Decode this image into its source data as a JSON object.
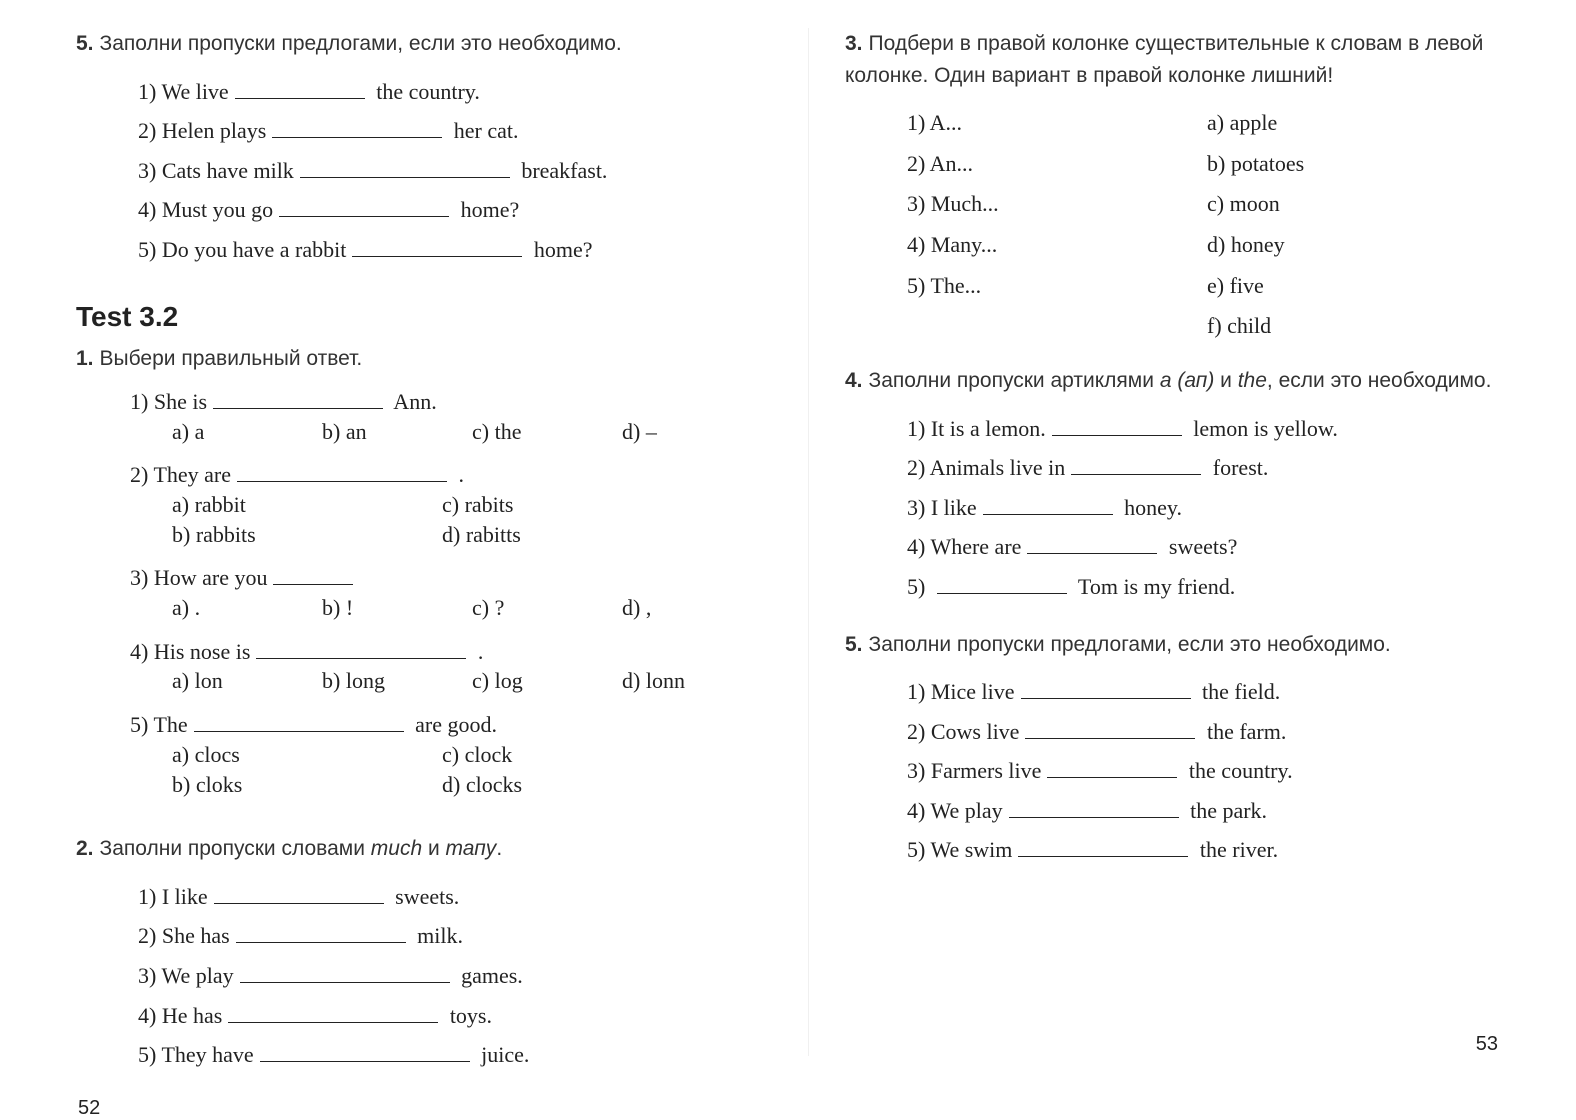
{
  "left": {
    "page_number": "52",
    "task5": {
      "num": "5.",
      "intro": "Заполни пропуски предлогами, если это необходимо.",
      "items": [
        {
          "n": "1)",
          "pre": "We live",
          "post": "the country.",
          "blank": "md"
        },
        {
          "n": "2)",
          "pre": "Helen plays",
          "post": "her cat.",
          "blank": "lg"
        },
        {
          "n": "3)",
          "pre": "Cats have milk",
          "post": "breakfast.",
          "blank": "xl"
        },
        {
          "n": "4)",
          "pre": "Must you go",
          "post": "home?",
          "blank": "lg"
        },
        {
          "n": "5)",
          "pre": "Do you have a rabbit",
          "post": "home?",
          "blank": "lg"
        }
      ]
    },
    "heading": "Test 3.2",
    "task1": {
      "num": "1.",
      "intro": "Выбери правильный ответ.",
      "items": [
        {
          "n": "1)",
          "stem_pre": "She is",
          "stem_post": "Ann.",
          "blank": "lg",
          "opts": [
            "a) a",
            "b) an",
            "c) the",
            "d) –"
          ],
          "layout": "col4"
        },
        {
          "n": "2)",
          "stem_pre": "They are",
          "stem_post": ".",
          "blank": "xl",
          "opts": [
            "a) rabbit",
            "c) rabits",
            "b) rabbits",
            "d) rabitts"
          ],
          "layout": "col2"
        },
        {
          "n": "3)",
          "stem_pre": "How are you",
          "stem_post": "",
          "blank": "sm",
          "opts": [
            "a) .",
            "b) !",
            "c) ?",
            "d) ,"
          ],
          "layout": "col4"
        },
        {
          "n": "4)",
          "stem_pre": "His nose is",
          "stem_post": ".",
          "blank": "xl",
          "opts": [
            "a) lon",
            "b) long",
            "c) log",
            "d) lonn"
          ],
          "layout": "col4"
        },
        {
          "n": "5)",
          "stem_pre": "The",
          "stem_post": "are good.",
          "blank": "xl",
          "opts": [
            "a) clocs",
            "c) clock",
            "b) cloks",
            "d) clocks"
          ],
          "layout": "col2"
        }
      ]
    },
    "task2": {
      "num": "2.",
      "intro_pre": "Заполни пропуски словами ",
      "intro_it1": "тисh",
      "intro_mid": " и ",
      "intro_it2": "тапу",
      "intro_post": ".",
      "items": [
        {
          "n": "1)",
          "pre": "I like",
          "post": "sweets.",
          "blank": "lg"
        },
        {
          "n": "2)",
          "pre": "She has",
          "post": "milk.",
          "blank": "lg"
        },
        {
          "n": "3)",
          "pre": "We play",
          "post": "games.",
          "blank": "xl"
        },
        {
          "n": "4)",
          "pre": "He has",
          "post": "toys.",
          "blank": "xl"
        },
        {
          "n": "5)",
          "pre": "They have",
          "post": "juice.",
          "blank": "xl"
        }
      ]
    }
  },
  "right": {
    "page_number": "53",
    "task3": {
      "num": "3.",
      "intro": "Подбери в правой колонке существительные к словам в левой колонке. Один вариант в правой колонке лишний!",
      "left_col": [
        {
          "n": "1)",
          "t": "A..."
        },
        {
          "n": "2)",
          "t": "An..."
        },
        {
          "n": "3)",
          "t": "Much..."
        },
        {
          "n": "4)",
          "t": "Many..."
        },
        {
          "n": "5)",
          "t": "The..."
        }
      ],
      "right_col": [
        {
          "n": "a)",
          "t": "apple"
        },
        {
          "n": "b)",
          "t": "potatoes"
        },
        {
          "n": "c)",
          "t": "moon"
        },
        {
          "n": "d)",
          "t": "honey"
        },
        {
          "n": "e)",
          "t": "five"
        },
        {
          "n": "f)",
          "t": "child"
        }
      ]
    },
    "task4": {
      "num": "4.",
      "intro_pre": "Заполни пропуски артиклями ",
      "intro_it1": "а (ап)",
      "intro_mid": " и ",
      "intro_it2": "the",
      "intro_post": ", если это необходимо.",
      "items": [
        {
          "n": "1)",
          "pre": "It is a lemon.",
          "post": "lemon is yellow.",
          "blank": "md"
        },
        {
          "n": "2)",
          "pre": "Animals live in",
          "post": "forest.",
          "blank": "md"
        },
        {
          "n": "3)",
          "pre": "I like",
          "post": "honey.",
          "blank": "md"
        },
        {
          "n": "4)",
          "pre": "Where are",
          "post": "sweets?",
          "blank": "md"
        },
        {
          "n": "5)",
          "pre": "",
          "post": "Tom is my friend.",
          "blank": "md"
        }
      ]
    },
    "task5": {
      "num": "5.",
      "intro": "Заполни пропуски предлогами, если это необходимо.",
      "items": [
        {
          "n": "1)",
          "pre": "Mice live",
          "post": "the field.",
          "blank": "lg"
        },
        {
          "n": "2)",
          "pre": "Cows live",
          "post": "the farm.",
          "blank": "lg"
        },
        {
          "n": "3)",
          "pre": "Farmers live",
          "post": "the country.",
          "blank": "md"
        },
        {
          "n": "4)",
          "pre": "We play",
          "post": "the park.",
          "blank": "lg"
        },
        {
          "n": "5)",
          "pre": "We swim",
          "post": "the river.",
          "blank": "lg"
        }
      ]
    }
  }
}
